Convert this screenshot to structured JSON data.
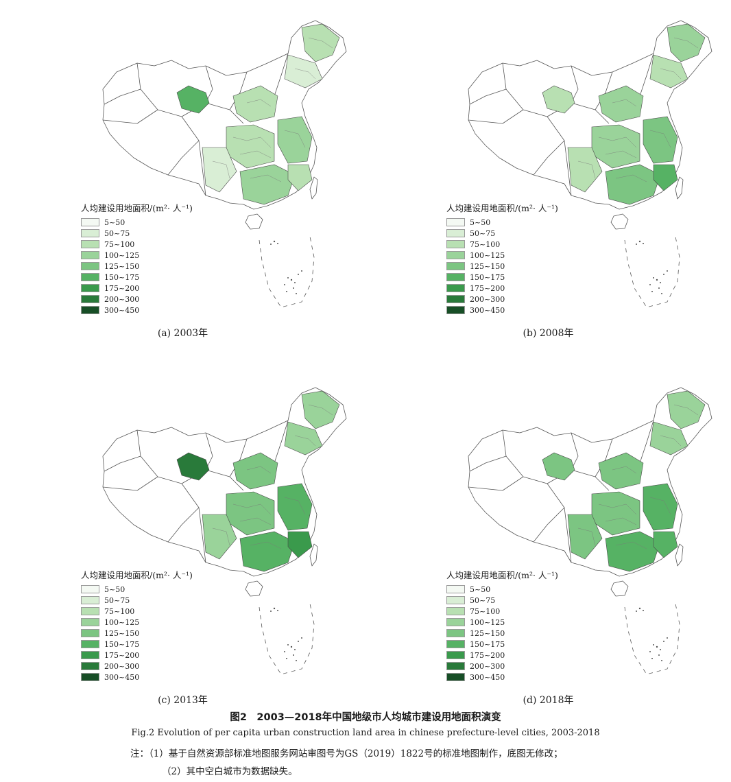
{
  "legend": {
    "title": "人均建设用地面积/(m²· 人⁻¹)",
    "classes": [
      {
        "label": "5~50",
        "color": "#f4f9f3"
      },
      {
        "label": "50~75",
        "color": "#d9eed5"
      },
      {
        "label": "75~100",
        "color": "#b8e0b2"
      },
      {
        "label": "100~125",
        "color": "#9ad39a"
      },
      {
        "label": "125~150",
        "color": "#7cc582"
      },
      {
        "label": "150~175",
        "color": "#56b264"
      },
      {
        "label": "175~200",
        "color": "#3a9a4c"
      },
      {
        "label": "200~300",
        "color": "#297a3a"
      },
      {
        "label": "300~450",
        "color": "#174e26"
      }
    ]
  },
  "panels": [
    {
      "caption": "(a) 2003年",
      "fills": [
        2,
        1,
        2,
        3,
        2,
        1,
        5,
        3,
        2
      ]
    },
    {
      "caption": "(b) 2008年",
      "fills": [
        3,
        2,
        3,
        4,
        3,
        2,
        2,
        4,
        5
      ]
    },
    {
      "caption": "(c) 2013年",
      "fills": [
        3,
        3,
        4,
        5,
        4,
        3,
        7,
        5,
        6
      ]
    },
    {
      "caption": "(d) 2018年",
      "fills": [
        3,
        3,
        4,
        5,
        4,
        4,
        4,
        5,
        5
      ]
    }
  ],
  "figure": {
    "title": "图2　2003—2018年中国地级市人均城市建设用地面积演变",
    "subtitle": "Fig.2  Evolution of per capita urban construction land area in chinese prefecture-level cities, 2003-2018",
    "notes": [
      "注：（1）基于自然资源部标准地图服务网站审图号为GS（2019）1822号的标准地图制作，底图无修改；",
      "（2）其中空白城市为数据缺失。"
    ]
  },
  "map_colors": {
    "outline": "#555555",
    "empty": "#ffffff"
  }
}
